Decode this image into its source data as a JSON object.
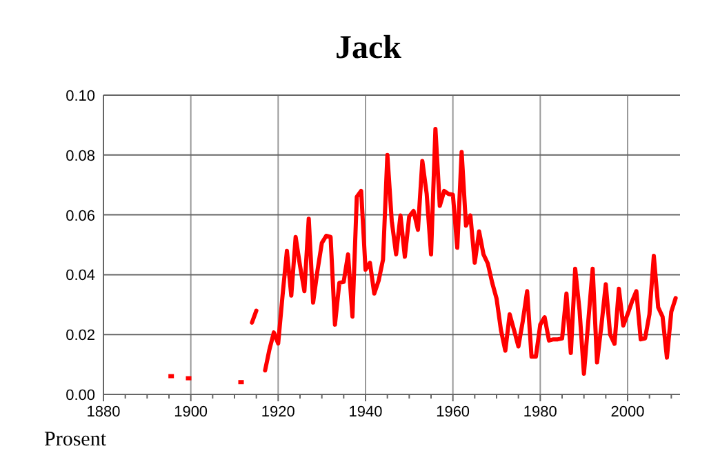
{
  "chart_data": {
    "type": "line",
    "title": "Jack",
    "ylabel": "Prosent",
    "x": [
      1914,
      1915,
      1916,
      1917,
      1918,
      1919,
      1920,
      1921,
      1922,
      1923,
      1924,
      1925,
      1926,
      1927,
      1928,
      1929,
      1930,
      1931,
      1932,
      1933,
      1934,
      1935,
      1936,
      1937,
      1938,
      1939,
      1940,
      1941,
      1942,
      1943,
      1944,
      1945,
      1946,
      1947,
      1948,
      1949,
      1950,
      1951,
      1952,
      1953,
      1954,
      1955,
      1956,
      1957,
      1958,
      1959,
      1960,
      1961,
      1962,
      1963,
      1964,
      1965,
      1966,
      1967,
      1968,
      1969,
      1970,
      1971,
      1972,
      1973,
      1974,
      1975,
      1976,
      1977,
      1978,
      1979,
      1980,
      1981,
      1982,
      1983,
      1984,
      1985,
      1986,
      1987,
      1988,
      1989,
      1990,
      1991,
      1992,
      1993,
      1994,
      1995,
      1996,
      1997,
      1998,
      1999,
      2000,
      2001,
      2002,
      2003,
      2004,
      2005,
      2006,
      2007,
      2008,
      2009,
      2010,
      2011
    ],
    "series": [
      {
        "type": "scatter",
        "marker": "square",
        "color": "#ff0000",
        "x": [
          1895.5,
          1899.5,
          1911.5
        ],
        "values": [
          0.0061,
          0.0054,
          0.0041
        ]
      },
      {
        "color": "#ff0000",
        "values": [
          0.024,
          0.028,
          null,
          0.008,
          0.015,
          0.0207,
          0.017,
          0.033,
          0.048,
          0.033,
          0.0526,
          0.043,
          0.0345,
          0.0587,
          0.0307,
          0.0414,
          0.0506,
          0.053,
          0.0526,
          0.0233,
          0.0373,
          0.0376,
          0.0468,
          0.026,
          0.066,
          0.068,
          0.0417,
          0.044,
          0.0337,
          0.038,
          0.045,
          0.08,
          0.058,
          0.0468,
          0.0598,
          0.046,
          0.0595,
          0.0613,
          0.055,
          0.078,
          0.067,
          0.0468,
          0.0887,
          0.063,
          0.068,
          0.067,
          0.0667,
          0.049,
          0.081,
          0.0564,
          0.0598,
          0.044,
          0.0545,
          0.0468,
          0.0437,
          0.0373,
          0.032,
          0.0215,
          0.0146,
          0.0268,
          0.0215,
          0.016,
          0.0245,
          0.0345,
          0.0126,
          0.0126,
          0.0233,
          0.0258,
          0.018,
          0.0184,
          0.0184,
          0.0187,
          0.0337,
          0.0138,
          0.042,
          0.028,
          0.0069,
          0.0245,
          0.042,
          0.0107,
          0.023,
          0.0368,
          0.02,
          0.0169,
          0.0353,
          0.023,
          0.0268,
          0.031,
          0.0345,
          0.0184,
          0.0187,
          0.0268,
          0.0463,
          0.0291,
          0.026,
          0.0123,
          0.0276,
          0.0322
        ]
      }
    ],
    "xlim": [
      1880,
      2012
    ],
    "xticks": [
      1880,
      {
        "value": 1885,
        "label": null
      },
      {
        "value": 1890,
        "label": null
      },
      {
        "value": 1895,
        "label": null
      },
      1900,
      {
        "value": 1905,
        "label": null
      },
      {
        "value": 1910,
        "label": null
      },
      {
        "value": 1915,
        "label": null
      },
      1920,
      {
        "value": 1925,
        "label": null
      },
      {
        "value": 1930,
        "label": null
      },
      {
        "value": 1935,
        "label": null
      },
      1940,
      {
        "value": 1945,
        "label": null
      },
      {
        "value": 1950,
        "label": null
      },
      {
        "value": 1955,
        "label": null
      },
      1960,
      {
        "value": 1965,
        "label": null
      },
      {
        "value": 1970,
        "label": null
      },
      {
        "value": 1975,
        "label": null
      },
      1980,
      {
        "value": 1985,
        "label": null
      },
      {
        "value": 1990,
        "label": null
      },
      {
        "value": 1995,
        "label": null
      },
      2000,
      {
        "value": 2005,
        "label": null
      },
      {
        "value": 2010,
        "label": null
      }
    ],
    "ylim": [
      0,
      0.1
    ],
    "yticks": [
      {
        "value": 0,
        "label": "0.00"
      },
      {
        "value": 0.02,
        "label": "0.02"
      },
      {
        "value": 0.04,
        "label": "0.04"
      },
      {
        "value": 0.06,
        "label": "0.06"
      },
      {
        "value": 0.08,
        "label": "0.08"
      },
      {
        "value": 0.1,
        "label": "0.10"
      }
    ],
    "grid": true,
    "legend": false,
    "marker": "none",
    "line_style": "solid"
  }
}
